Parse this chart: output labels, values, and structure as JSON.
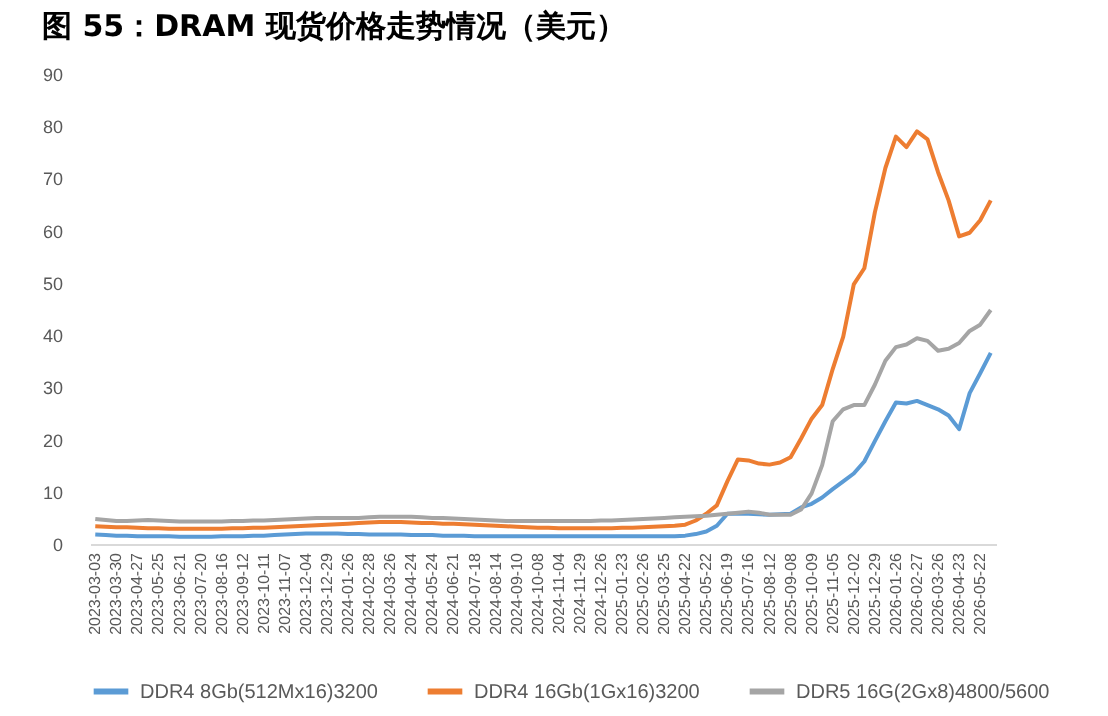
{
  "chart_data": {
    "type": "line",
    "title": "图 55：DRAM 现货价格走势情况（美元）",
    "categories": [
      "2023-03-03",
      null,
      "2023-03-30",
      null,
      "2023-04-27",
      null,
      "2023-05-25",
      null,
      "2023-06-21",
      null,
      "2023-07-20",
      null,
      "2023-08-16",
      null,
      "2023-09-12",
      null,
      "2023-10-11",
      null,
      "2023-11-07",
      null,
      "2023-12-04",
      null,
      "2023-12-29",
      null,
      "2024-01-26",
      null,
      "2024-02-28",
      null,
      "2024-03-26",
      null,
      "2024-04-24",
      null,
      "2024-05-24",
      null,
      "2024-06-21",
      null,
      "2024-07-18",
      null,
      "2024-08-14",
      null,
      "2024-09-10",
      null,
      "2024-10-08",
      null,
      "2024-11-04",
      null,
      "2024-11-29",
      null,
      "2024-12-26",
      null,
      "2025-01-23",
      null,
      "2025-02-26",
      null,
      "2025-03-25",
      null,
      "2025-04-22",
      null,
      "2025-05-22",
      null,
      "2025-06-19",
      null,
      "2025-07-16",
      null,
      "2025-08-12",
      null,
      "2025-09-08",
      null,
      "2025-10-09",
      null,
      "2025-11-05",
      null,
      "2025-12-02",
      null,
      "2025-12-29",
      null,
      "2026-01-26",
      null,
      "2026-02-27",
      null,
      "2026-03-26",
      null,
      "2026-04-23",
      null,
      "2026-05-22",
      null
    ],
    "series": [
      {
        "name": "DDR4 8Gb(512Mx16)3200",
        "color": "#5b9bd5",
        "values": [
          1.8,
          1.7,
          1.6,
          1.6,
          1.5,
          1.5,
          1.5,
          1.5,
          1.4,
          1.4,
          1.4,
          1.4,
          1.5,
          1.5,
          1.5,
          1.6,
          1.6,
          1.7,
          1.8,
          1.9,
          2.0,
          2.0,
          2.0,
          2.0,
          1.9,
          1.9,
          1.8,
          1.8,
          1.8,
          1.8,
          1.7,
          1.7,
          1.7,
          1.6,
          1.6,
          1.6,
          1.5,
          1.5,
          1.5,
          1.5,
          1.5,
          1.5,
          1.5,
          1.5,
          1.5,
          1.5,
          1.5,
          1.5,
          1.5,
          1.5,
          1.5,
          1.5,
          1.5,
          1.5,
          1.5,
          1.5,
          1.6,
          1.9,
          2.4,
          3.5,
          5.8,
          5.8,
          5.8,
          5.7,
          5.6,
          5.7,
          5.8,
          7,
          7.7,
          8.9,
          10.5,
          12,
          13.5,
          15.8,
          19.7,
          23.5,
          27.1,
          26.9,
          27.4,
          26.6,
          25.8,
          24.6,
          22,
          28.9,
          32.7,
          36.6
        ]
      },
      {
        "name": "DDR4 16Gb(1Gx16)3200",
        "color": "#ed7d31",
        "values": [
          3.4,
          3.3,
          3.2,
          3.2,
          3.1,
          3.0,
          3.0,
          2.9,
          2.9,
          2.9,
          2.9,
          2.9,
          2.9,
          3.0,
          3.0,
          3.1,
          3.1,
          3.2,
          3.3,
          3.4,
          3.5,
          3.6,
          3.7,
          3.8,
          3.9,
          4.0,
          4.1,
          4.2,
          4.2,
          4.2,
          4.1,
          4.0,
          4.0,
          3.9,
          3.9,
          3.8,
          3.7,
          3.6,
          3.5,
          3.4,
          3.3,
          3.2,
          3.1,
          3.1,
          3.0,
          3.0,
          3.0,
          3.0,
          3.0,
          3.0,
          3.1,
          3.1,
          3.2,
          3.3,
          3.4,
          3.5,
          3.7,
          4.5,
          5.8,
          7.4,
          12,
          16.2,
          16,
          15.4,
          15.2,
          15.6,
          16.6,
          20.2,
          24,
          26.6,
          33.5,
          39.7,
          49.7,
          52.8,
          63.5,
          72,
          78,
          76,
          79,
          77.5,
          71.2,
          65.8,
          58.9,
          59.6,
          62,
          65.8
        ]
      },
      {
        "name": "DDR5 16G(2Gx8)4800/5600",
        "color": "#a5a5a5",
        "values": [
          4.8,
          4.6,
          4.4,
          4.4,
          4.5,
          4.6,
          4.5,
          4.4,
          4.3,
          4.3,
          4.3,
          4.3,
          4.3,
          4.4,
          4.4,
          4.5,
          4.5,
          4.6,
          4.7,
          4.8,
          4.9,
          5.0,
          5.0,
          5.0,
          5.0,
          5.0,
          5.1,
          5.2,
          5.2,
          5.2,
          5.2,
          5.1,
          5.0,
          5.0,
          4.9,
          4.8,
          4.7,
          4.6,
          4.5,
          4.4,
          4.4,
          4.4,
          4.4,
          4.4,
          4.4,
          4.4,
          4.4,
          4.4,
          4.5,
          4.5,
          4.6,
          4.7,
          4.8,
          4.9,
          5.0,
          5.1,
          5.2,
          5.3,
          5.4,
          5.6,
          5.8,
          6.0,
          6.2,
          6.0,
          5.6,
          5.6,
          5.6,
          6.6,
          9.7,
          15.1,
          23.5,
          25.8,
          26.6,
          26.6,
          30.5,
          35.1,
          37.7,
          38.2,
          39.4,
          38.9,
          37,
          37.4,
          38.5,
          40.8,
          42,
          44.8
        ]
      }
    ],
    "ylim": [
      0,
      90
    ],
    "yticks": [
      0,
      10,
      20,
      30,
      40,
      50,
      60,
      70,
      80,
      90
    ],
    "grid": false,
    "legend": "bottom"
  }
}
